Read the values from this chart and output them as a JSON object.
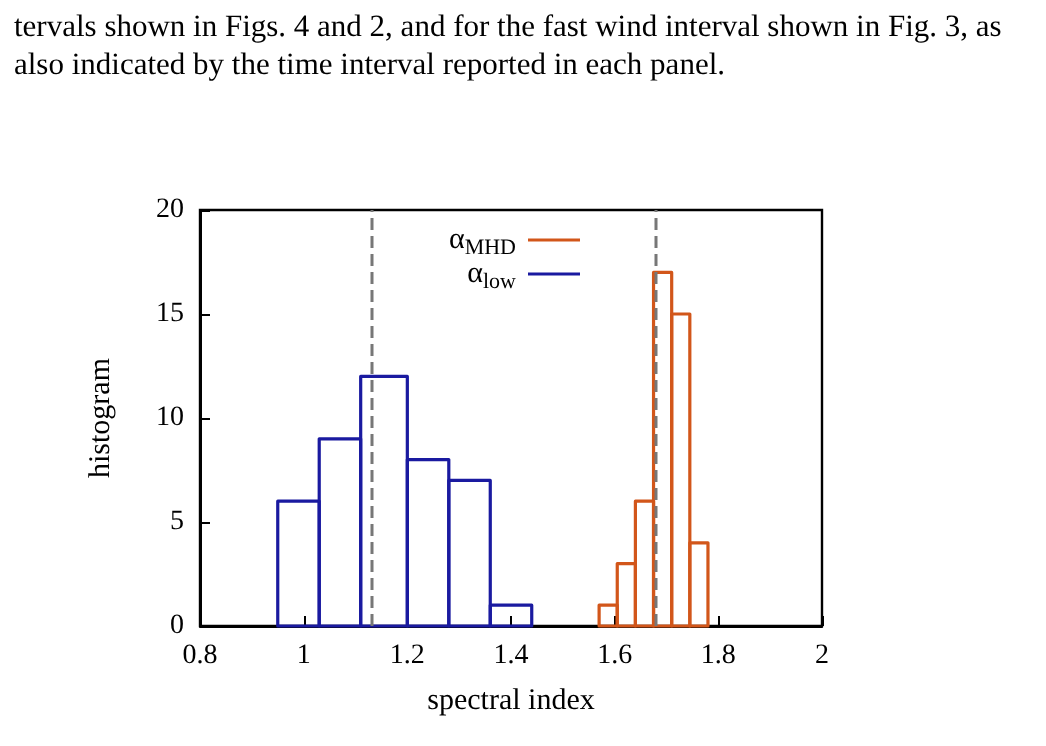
{
  "chart_data": {
    "type": "histogram",
    "annotations": [
      "tervals shown in Figs. 4 and 2, and for the fast wind interval shown in Fig. 3, as also indicated by the time interval reported in each panel."
    ],
    "xlabel": "spectral index",
    "ylabel": "histogram",
    "series": [
      {
        "name": "α$_{MHD}$",
        "color": "#d2561a",
        "values": [
          null,
          null,
          null,
          null,
          null,
          null,
          null,
          1,
          3,
          6,
          17,
          15,
          4
        ]
      },
      {
        "name": "α$_{low}$",
        "color": "#1a1aa0",
        "values": [
          6,
          9,
          12,
          8,
          7,
          1,
          null,
          null,
          null,
          null,
          null,
          null,
          null
        ]
      }
    ],
    "bins": [
      0.95,
      1.03,
      1.11,
      1.2,
      1.28,
      1.36,
      1.44,
      1.57,
      1.605,
      1.64,
      1.675,
      1.71,
      1.745,
      1.78
    ],
    "xlim": [
      0.8,
      2
    ],
    "xticks": [
      0.8,
      1,
      1.2,
      1.4,
      1.6,
      1.8,
      2
    ],
    "ylim": [
      0,
      20
    ],
    "yticks": [
      0,
      5,
      10,
      15,
      20
    ],
    "ref_lines": [
      {
        "axis": "x",
        "value": 1.13,
        "color": "#777777",
        "line_style": "dashed"
      },
      {
        "axis": "x",
        "value": 1.68,
        "color": "#777777",
        "line_style": "dashed"
      }
    ],
    "grid": false,
    "legend": "top"
  }
}
